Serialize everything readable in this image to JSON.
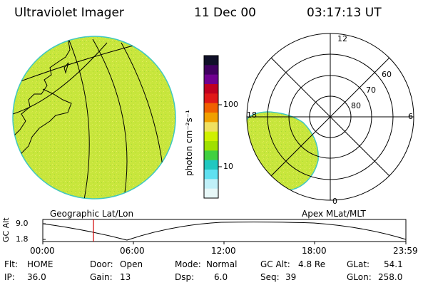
{
  "header": {
    "title": "Ultraviolet Imager",
    "date": "11 Dec 00",
    "time": "03:17:13 UT"
  },
  "colorbar": {
    "unit_label": "photon cm⁻²s⁻¹",
    "tick_labels": [
      "100",
      "10"
    ],
    "colors": [
      "#101028",
      "#400060",
      "#700090",
      "#c00020",
      "#e01818",
      "#f06000",
      "#f0a000",
      "#f0e060",
      "#d0f000",
      "#a0e000",
      "#40d040",
      "#20c8c0",
      "#60e0f0",
      "#c0f0f8",
      "#e8f8f8"
    ]
  },
  "geo_map": {
    "caption": "Geographic Lat/Lon",
    "fill_color": "#c8e63c"
  },
  "polar_plot": {
    "caption": "Apex MLat/MLT",
    "mlt_labels": [
      "12",
      "18",
      "6",
      "0"
    ],
    "lat_labels": [
      "60",
      "70",
      "80"
    ]
  },
  "altitude_plot": {
    "axis_label": "GC Alt",
    "y_ticks": [
      "9.0",
      "1.8"
    ],
    "x_ticks": [
      "00:00",
      "06:00",
      "12:00",
      "18:00",
      "23:59"
    ],
    "current_marker_color": "#d00000"
  },
  "status": {
    "flt_label": "Flt:",
    "flt_value": "HOME",
    "ip_label": "IP:",
    "ip_value": "36.0",
    "door_label": "Door:",
    "door_value": "Open",
    "gain_label": "Gain:",
    "gain_value": "13",
    "mode_label": "Mode:",
    "mode_value": "Normal",
    "dsp_label": "Dsp:",
    "dsp_value": "6.0",
    "gcalt_label": "GC Alt:",
    "gcalt_value": "4.8 Re",
    "seq_label": "Seq:",
    "seq_value": "39",
    "glat_label": "GLat:",
    "glat_value": "54.1",
    "glon_label": "GLon:",
    "glon_value": "258.0"
  }
}
